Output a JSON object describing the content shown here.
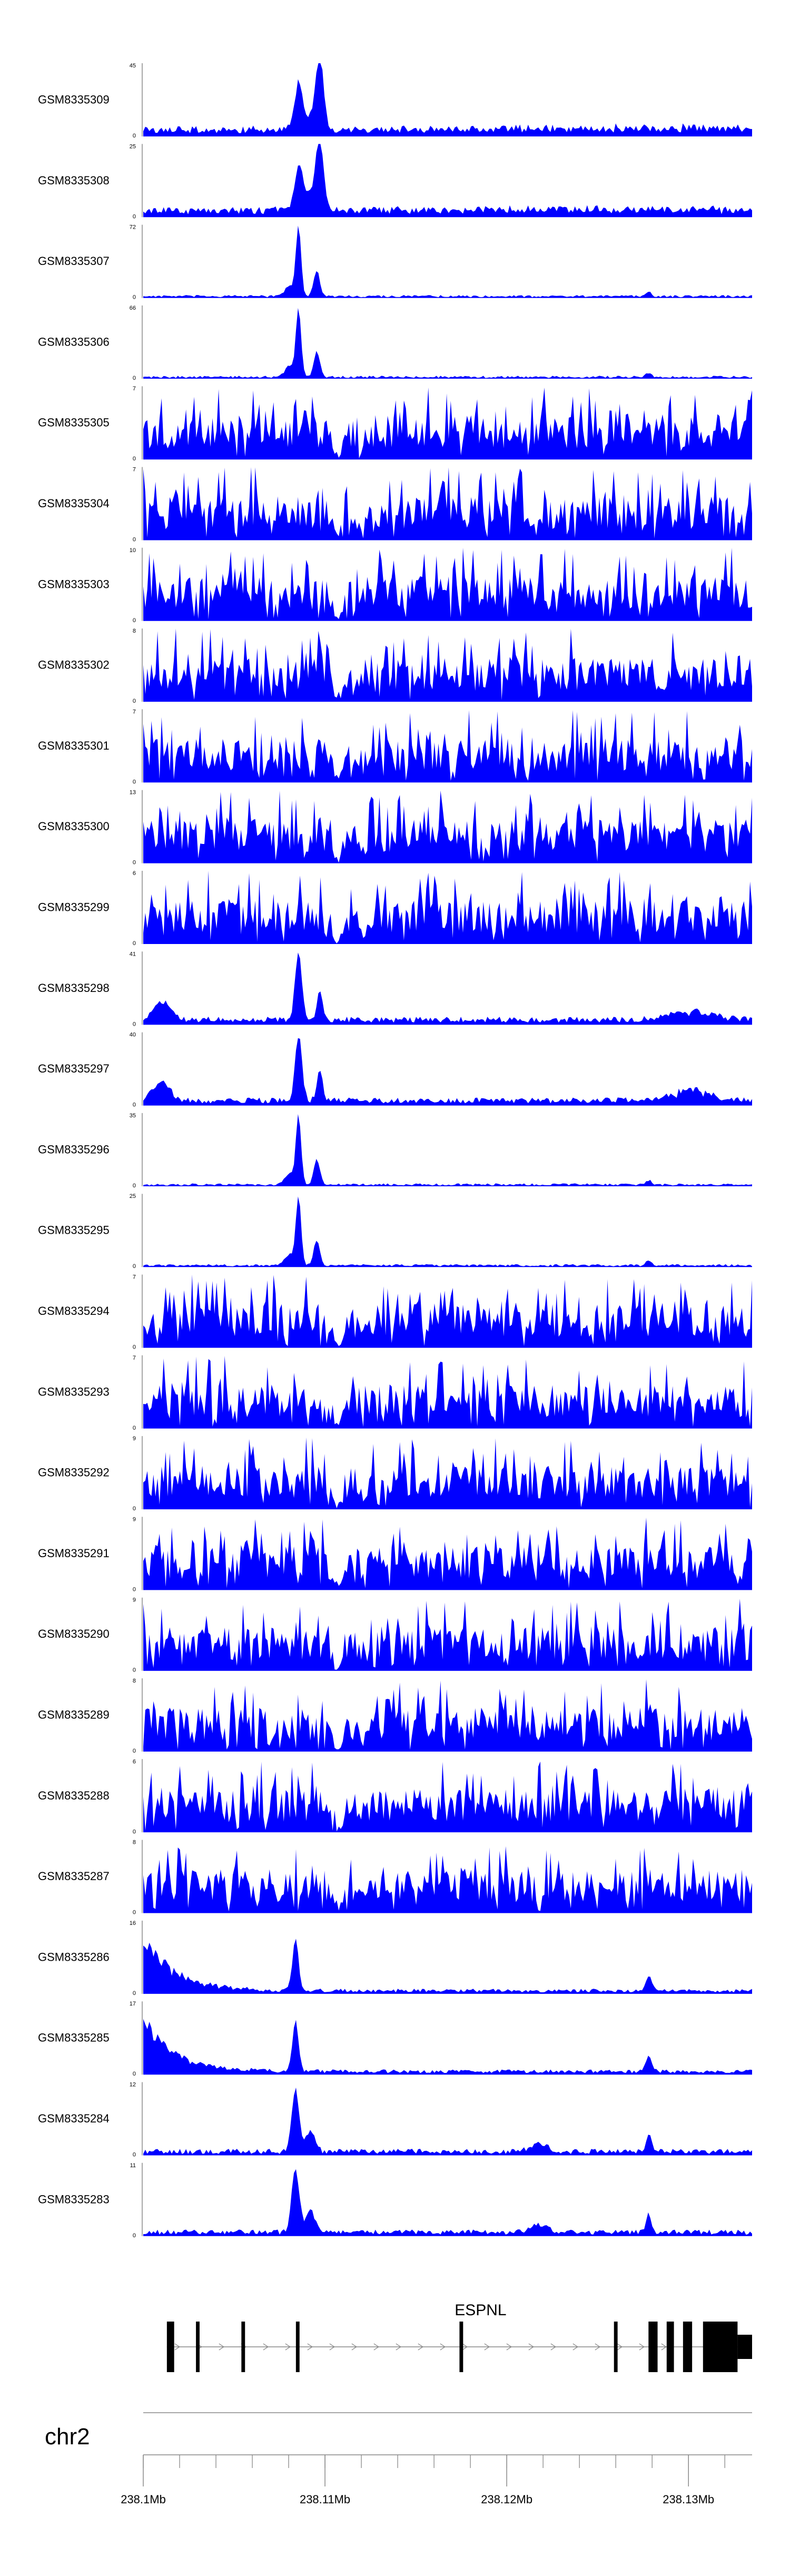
{
  "chart_data": {
    "type": "area",
    "color": "#0000ff",
    "axis_color": "#888888",
    "region": {
      "chromosome": "chr2",
      "start_mb": 238.1,
      "end_mb": 238.1335
    },
    "x_tick_labels": [
      {
        "value": 238.1,
        "label": "238.1Mb"
      },
      {
        "value": 238.11,
        "label": "238.11Mb"
      },
      {
        "value": 238.12,
        "label": "238.12Mb"
      },
      {
        "value": 238.13,
        "label": "238.13Mb"
      }
    ],
    "x_minor_step_mb": 0.002,
    "series": [
      {
        "name": "GSM8335309",
        "ymax": 45,
        "ymin": 0,
        "profile": "A"
      },
      {
        "name": "GSM8335308",
        "ymax": 25,
        "ymin": 0,
        "profile": "A"
      },
      {
        "name": "GSM8335307",
        "ymax": 72,
        "ymin": 0,
        "profile": "B"
      },
      {
        "name": "GSM8335306",
        "ymax": 66,
        "ymin": 0,
        "profile": "B"
      },
      {
        "name": "GSM8335305",
        "ymax": 7,
        "ymin": 0,
        "profile": "N"
      },
      {
        "name": "GSM8335304",
        "ymax": 7,
        "ymin": 0,
        "profile": "N"
      },
      {
        "name": "GSM8335303",
        "ymax": 10,
        "ymin": 0,
        "profile": "N"
      },
      {
        "name": "GSM8335302",
        "ymax": 8,
        "ymin": 0,
        "profile": "N"
      },
      {
        "name": "GSM8335301",
        "ymax": 7,
        "ymin": 0,
        "profile": "N"
      },
      {
        "name": "GSM8335300",
        "ymax": 13,
        "ymin": 0,
        "profile": "N"
      },
      {
        "name": "GSM8335299",
        "ymax": 6,
        "ymin": 0,
        "profile": "N"
      },
      {
        "name": "GSM8335298",
        "ymax": 41,
        "ymin": 0,
        "profile": "C"
      },
      {
        "name": "GSM8335297",
        "ymax": 40,
        "ymin": 0,
        "profile": "C"
      },
      {
        "name": "GSM8335296",
        "ymax": 35,
        "ymin": 0,
        "profile": "B"
      },
      {
        "name": "GSM8335295",
        "ymax": 25,
        "ymin": 0,
        "profile": "B"
      },
      {
        "name": "GSM8335294",
        "ymax": 7,
        "ymin": 0,
        "profile": "N"
      },
      {
        "name": "GSM8335293",
        "ymax": 7,
        "ymin": 0,
        "profile": "N"
      },
      {
        "name": "GSM8335292",
        "ymax": 9,
        "ymin": 0,
        "profile": "N"
      },
      {
        "name": "GSM8335291",
        "ymax": 9,
        "ymin": 0,
        "profile": "N"
      },
      {
        "name": "GSM8335290",
        "ymax": 9,
        "ymin": 0,
        "profile": "N"
      },
      {
        "name": "GSM8335289",
        "ymax": 8,
        "ymin": 0,
        "profile": "N"
      },
      {
        "name": "GSM8335288",
        "ymax": 6,
        "ymin": 0,
        "profile": "N"
      },
      {
        "name": "GSM8335287",
        "ymax": 8,
        "ymin": 0,
        "profile": "N"
      },
      {
        "name": "GSM8335286",
        "ymax": 16,
        "ymin": 0,
        "profile": "D"
      },
      {
        "name": "GSM8335285",
        "ymax": 17,
        "ymin": 0,
        "profile": "D"
      },
      {
        "name": "GSM8335284",
        "ymax": 12,
        "ymin": 0,
        "profile": "E"
      },
      {
        "name": "GSM8335283",
        "ymax": 11,
        "ymin": 0,
        "profile": "E"
      }
    ],
    "gene": {
      "name": "ESPNL",
      "strand": "+",
      "exons_mb": [
        [
          238.1013,
          238.1017
        ],
        [
          238.1029,
          238.1031
        ],
        [
          238.1054,
          238.1056
        ],
        [
          238.1084,
          238.1086
        ],
        [
          238.1174,
          238.1176
        ],
        [
          238.1259,
          238.1261
        ],
        [
          238.1278,
          238.1283
        ],
        [
          238.1288,
          238.1292
        ],
        [
          238.1297,
          238.1302
        ],
        [
          238.1308,
          238.1327
        ],
        [
          238.1327,
          238.1335
        ]
      ]
    }
  }
}
